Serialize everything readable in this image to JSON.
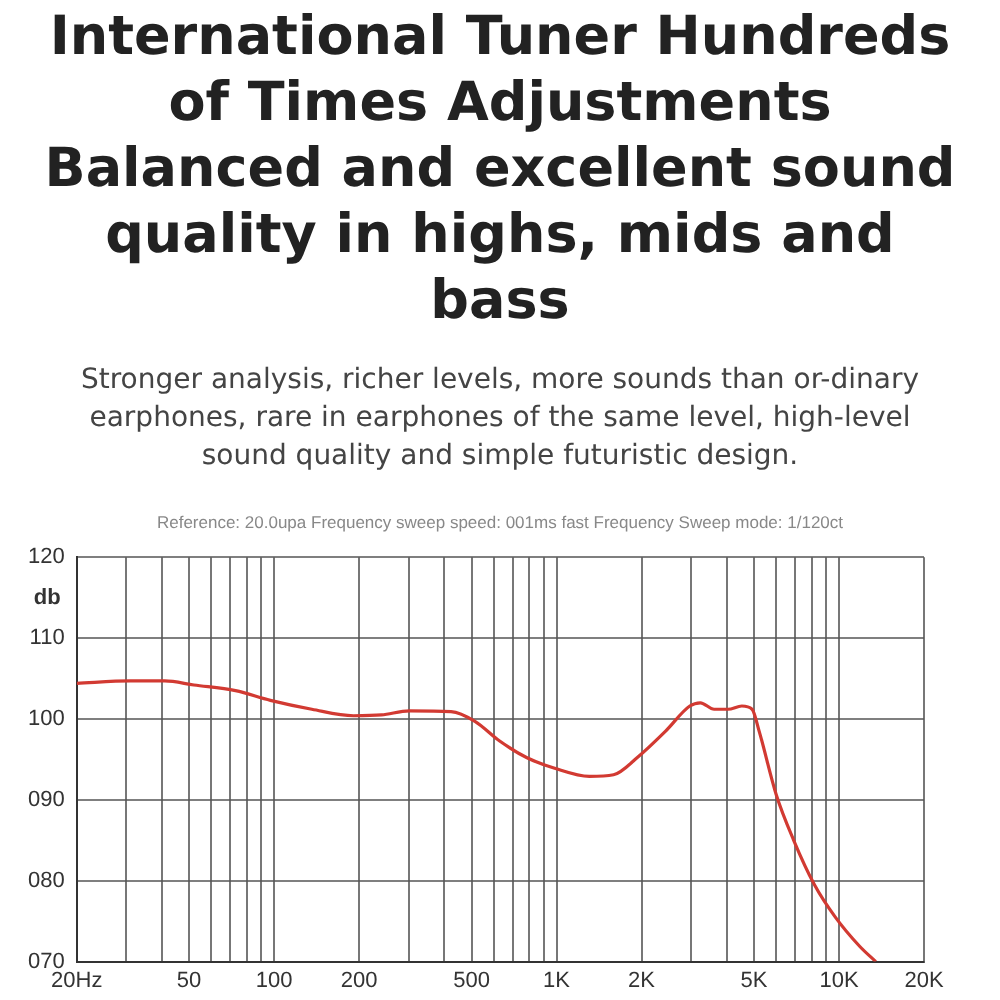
{
  "chart_data": {
    "type": "line",
    "title": "International Tuner  Hundreds of Times  Adjustments Balanced and excellent sound quality in highs, mids and bass",
    "subtitle": "Stronger analysis, richer levels, more sounds than or-dinary earphones, rare in earphones of the same level, high-level sound quality and simple futuristic design.",
    "ylabel": "db",
    "annotations": [
      "Reference: 20.0upa  Frequency sweep speed: 001ms fast  Frequency Sweep mode: 1/120ct"
    ],
    "log": "x",
    "grid": true,
    "marker": "none",
    "line_style": "solid",
    "xlim": [
      20,
      20000
    ],
    "ylim": [
      70,
      120
    ],
    "xticks": [
      {
        "value": 20,
        "label": "20Hz"
      },
      {
        "value": 30,
        "label": null
      },
      {
        "value": 40,
        "label": null
      },
      50,
      {
        "value": 60,
        "label": null
      },
      {
        "value": 70,
        "label": null
      },
      {
        "value": 80,
        "label": null
      },
      {
        "value": 90,
        "label": null
      },
      100,
      200,
      {
        "value": 300,
        "label": null
      },
      {
        "value": 400,
        "label": null
      },
      500,
      {
        "value": 600,
        "label": null
      },
      {
        "value": 700,
        "label": null
      },
      {
        "value": 800,
        "label": null
      },
      {
        "value": 900,
        "label": null
      },
      {
        "value": 1000,
        "label": "1K"
      },
      {
        "value": 2000,
        "label": "2K"
      },
      {
        "value": 3000,
        "label": null
      },
      {
        "value": 4000,
        "label": null
      },
      {
        "value": 5000,
        "label": "5K"
      },
      {
        "value": 6000,
        "label": null
      },
      {
        "value": 7000,
        "label": null
      },
      {
        "value": 8000,
        "label": null
      },
      {
        "value": 9000,
        "label": null
      },
      {
        "value": 10000,
        "label": "10K"
      },
      {
        "value": 20000,
        "label": "20K"
      }
    ],
    "yticks": [
      {
        "value": 70,
        "label": "070"
      },
      {
        "value": 80,
        "label": "080"
      },
      {
        "value": 90,
        "label": "090"
      },
      100,
      110,
      120
    ],
    "x": [
      20,
      31,
      41,
      52,
      73,
      97,
      136,
      191,
      240,
      301,
      423,
      514,
      627,
      786,
      985,
      1307,
      1592,
      1941,
      2433,
      2964,
      3229,
      3614,
      4046,
      4529,
      4924,
      5215,
      6000,
      6913,
      8188,
      9705,
      11830,
      13500
    ],
    "series": [
      {
        "color": "#d23a32",
        "values": [
          104.4,
          104.7,
          104.7,
          104.2,
          103.5,
          102.3,
          101.2,
          100.4,
          100.5,
          101,
          100.9,
          99.7,
          97.3,
          95.2,
          93.9,
          92.9,
          93.1,
          95.3,
          98.5,
          101.6,
          102,
          101.2,
          101.2,
          101.6,
          101.2,
          98.5,
          90.6,
          85,
          79.5,
          75.5,
          71.9,
          70
        ]
      }
    ]
  }
}
